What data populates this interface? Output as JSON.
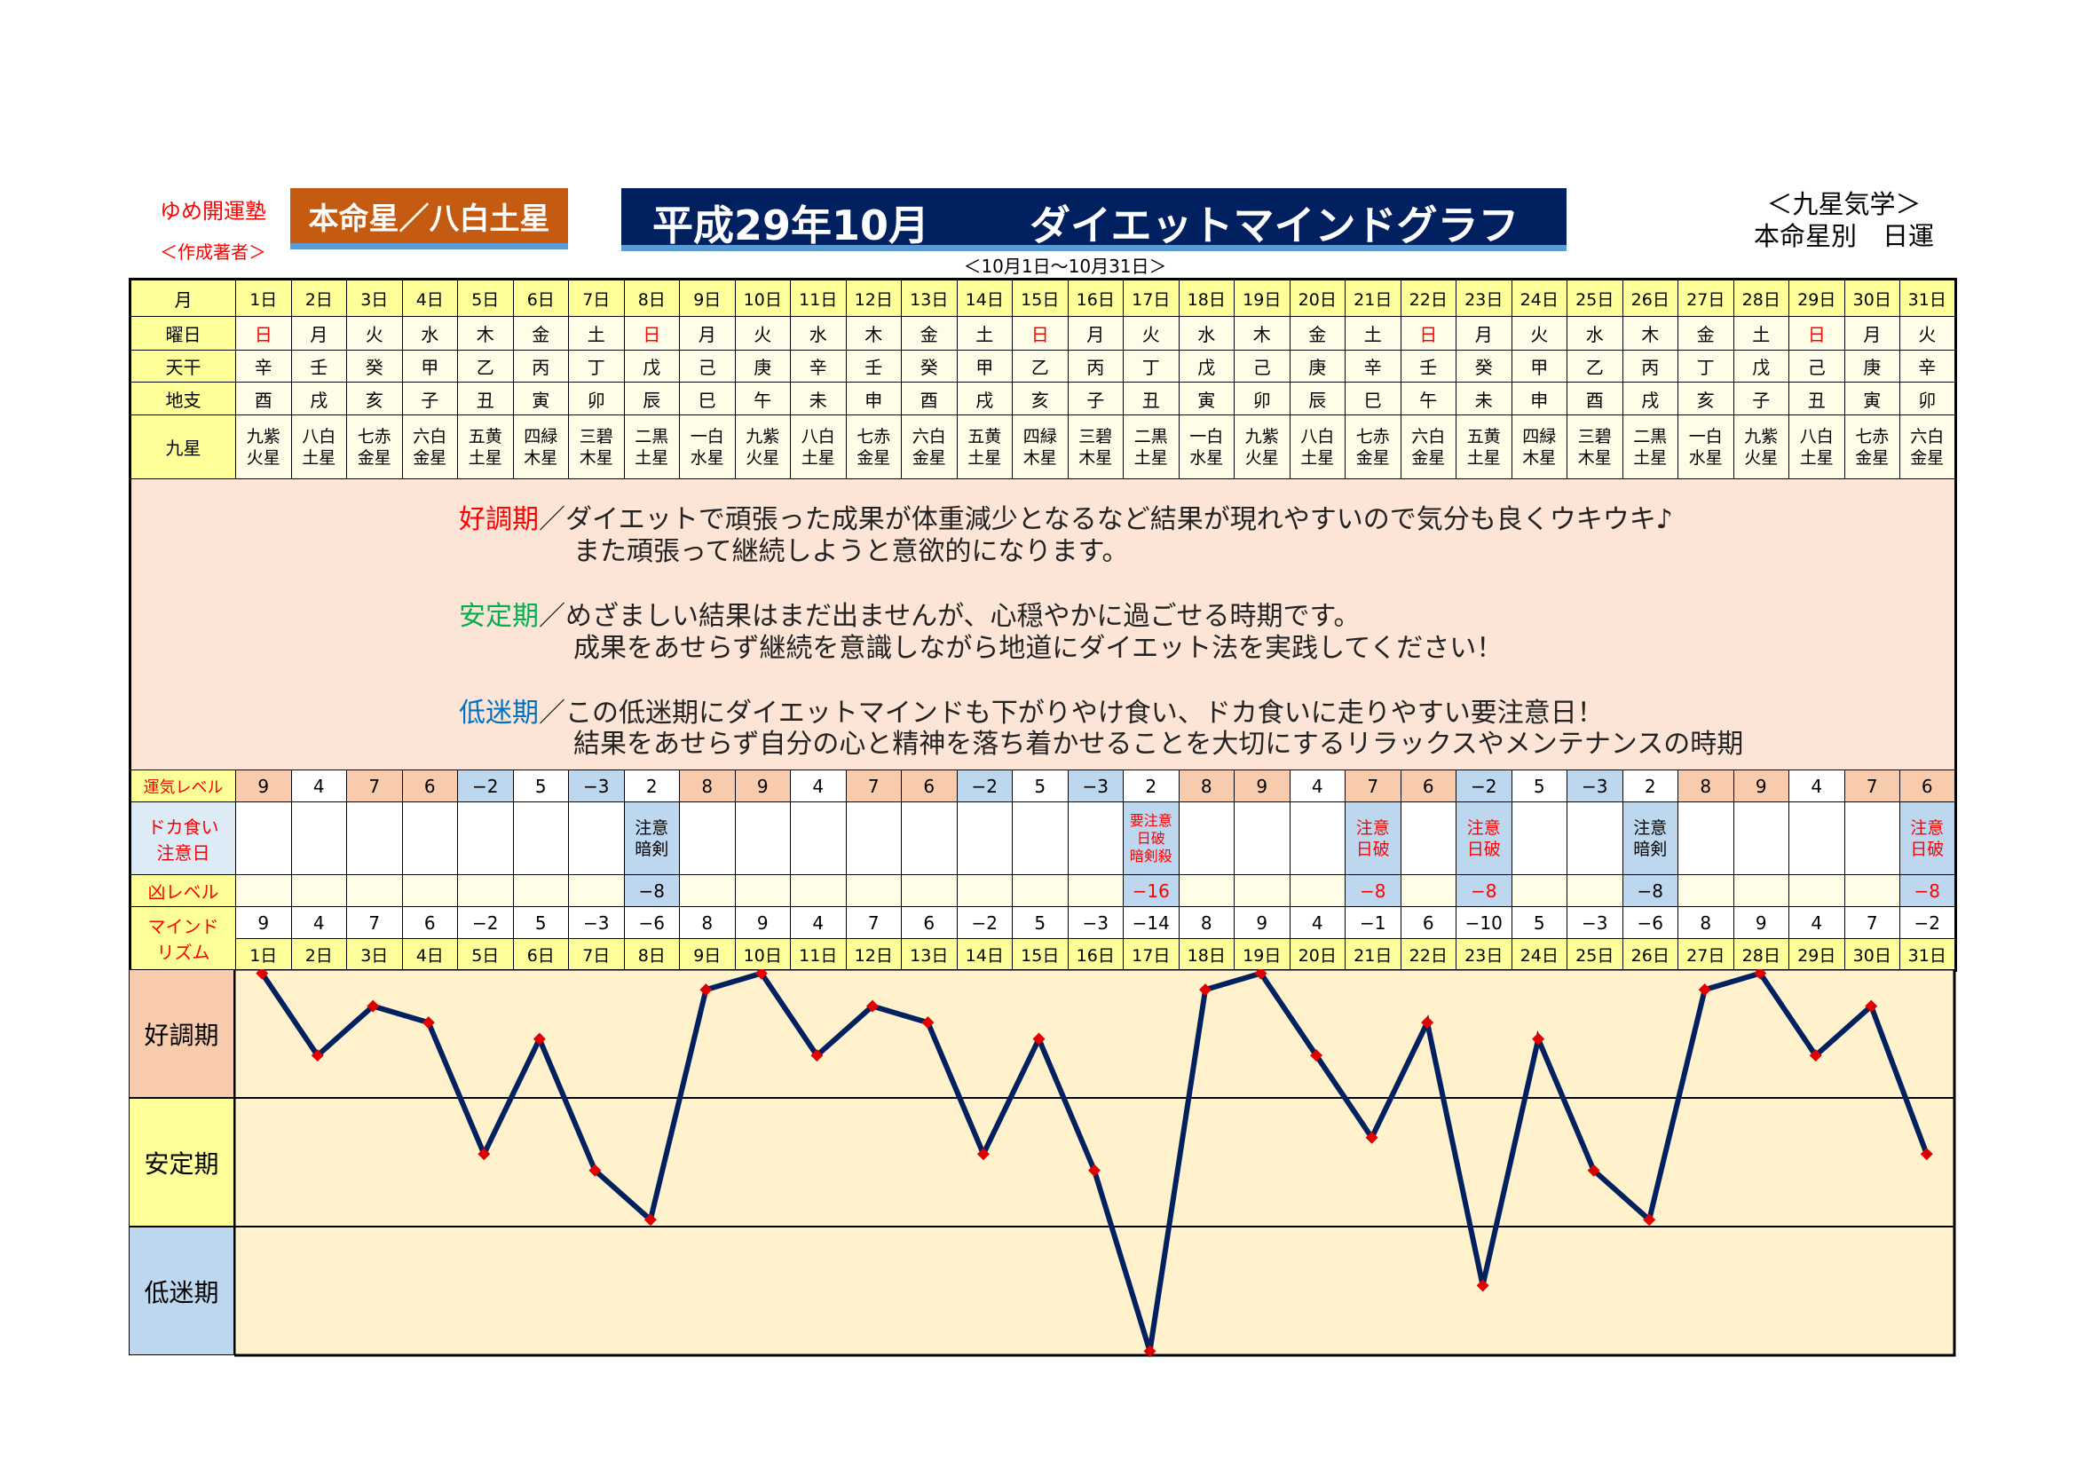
{
  "header": {
    "org": "ゆめ開運塾",
    "author": "＜作成著者＞",
    "honmeisei": "本命星／八白土星",
    "title_date": "平成29年10月",
    "title_main": "ダイエットマインドグラフ",
    "range": "＜10月1日～10月31日＞",
    "right_line1": "＜九星気学＞",
    "right_line2": "本命星別　日運"
  },
  "row_labels": {
    "month": "月",
    "weekday": "曜日",
    "kan": "天干",
    "shi": "地支",
    "star": "九星",
    "fortune": "運気レベル",
    "caution": "ドカ食い\n注意日",
    "kyou": "凶レベル",
    "mind": "マインド\nリズム"
  },
  "rows": {
    "day": [
      "1日",
      "2日",
      "3日",
      "4日",
      "5日",
      "6日",
      "7日",
      "8日",
      "9日",
      "10日",
      "11日",
      "12日",
      "13日",
      "14日",
      "15日",
      "16日",
      "17日",
      "18日",
      "19日",
      "20日",
      "21日",
      "22日",
      "23日",
      "24日",
      "25日",
      "26日",
      "27日",
      "28日",
      "29日",
      "30日",
      "31日"
    ],
    "weekday": [
      "日",
      "月",
      "火",
      "水",
      "木",
      "金",
      "土",
      "日",
      "月",
      "火",
      "水",
      "木",
      "金",
      "土",
      "日",
      "月",
      "火",
      "水",
      "木",
      "金",
      "土",
      "日",
      "月",
      "火",
      "水",
      "木",
      "金",
      "土",
      "日",
      "月",
      "火"
    ],
    "kan": [
      "辛",
      "壬",
      "癸",
      "甲",
      "乙",
      "丙",
      "丁",
      "戊",
      "己",
      "庚",
      "辛",
      "壬",
      "癸",
      "甲",
      "乙",
      "丙",
      "丁",
      "戊",
      "己",
      "庚",
      "辛",
      "壬",
      "癸",
      "甲",
      "乙",
      "丙",
      "丁",
      "戊",
      "己",
      "庚",
      "辛"
    ],
    "shi": [
      "酉",
      "戌",
      "亥",
      "子",
      "丑",
      "寅",
      "卯",
      "辰",
      "巳",
      "午",
      "未",
      "申",
      "酉",
      "戌",
      "亥",
      "子",
      "丑",
      "寅",
      "卯",
      "辰",
      "巳",
      "午",
      "未",
      "申",
      "酉",
      "戌",
      "亥",
      "子",
      "丑",
      "寅",
      "卯"
    ],
    "star": [
      "九紫\n火星",
      "八白\n土星",
      "七赤\n金星",
      "六白\n金星",
      "五黄\n土星",
      "四緑\n木星",
      "三碧\n木星",
      "二黒\n土星",
      "一白\n水星",
      "九紫\n火星",
      "八白\n土星",
      "七赤\n金星",
      "六白\n金星",
      "五黄\n土星",
      "四緑\n木星",
      "三碧\n木星",
      "二黒\n土星",
      "一白\n水星",
      "九紫\n火星",
      "八白\n土星",
      "七赤\n金星",
      "六白\n金星",
      "五黄\n土星",
      "四緑\n木星",
      "三碧\n木星",
      "二黒\n土星",
      "一白\n水星",
      "九紫\n火星",
      "八白\n土星",
      "七赤\n金星",
      "六白\n金星"
    ],
    "fortune": [
      "9",
      "4",
      "7",
      "6",
      "−2",
      "5",
      "−3",
      "2",
      "8",
      "9",
      "4",
      "7",
      "6",
      "−2",
      "5",
      "−3",
      "2",
      "8",
      "9",
      "4",
      "7",
      "6",
      "−2",
      "5",
      "−3",
      "2",
      "8",
      "9",
      "4",
      "7",
      "6"
    ],
    "caution": [
      "",
      "",
      "",
      "",
      "",
      "",
      "",
      "注意\n暗剣",
      "",
      "",
      "",
      "",
      "",
      "",
      "",
      "",
      "要注意\n日破\n暗剣殺",
      "",
      "",
      "",
      "注意\n日破",
      "",
      "注意\n日破",
      "",
      "",
      "注意\n暗剣",
      "",
      "",
      "",
      "",
      "注意\n日破"
    ],
    "caution_red": [
      false,
      false,
      false,
      false,
      false,
      false,
      false,
      false,
      false,
      false,
      false,
      false,
      false,
      false,
      false,
      false,
      true,
      false,
      false,
      false,
      true,
      false,
      true,
      false,
      false,
      false,
      false,
      false,
      false,
      false,
      true
    ],
    "kyou": [
      "",
      "",
      "",
      "",
      "",
      "",
      "",
      "−8",
      "",
      "",
      "",
      "",
      "",
      "",
      "",
      "",
      "−16",
      "",
      "",
      "",
      "−8",
      "",
      "−8",
      "",
      "",
      "−8",
      "",
      "",
      "",
      "",
      "−8"
    ],
    "mind": [
      "9",
      "4",
      "7",
      "6",
      "−2",
      "5",
      "−3",
      "−6",
      "8",
      "9",
      "4",
      "7",
      "6",
      "−2",
      "5",
      "−3",
      "−14",
      "8",
      "9",
      "4",
      "−1",
      "6",
      "−10",
      "5",
      "−3",
      "−6",
      "8",
      "9",
      "4",
      "7",
      "−2"
    ]
  },
  "descriptions": [
    {
      "label": "好調期",
      "label_color": "#ff0000",
      "line1": "／ダイエットで頑張った成果が体重減少となるなど結果が現れやすいので気分も良くウキウキ♪",
      "line2": "また頑張って継続しようと意欲的になります。"
    },
    {
      "label": "安定期",
      "label_color": "#00b050",
      "line1": "／めざましい結果はまだ出ませんが、心穏やかに過ごせる時期です。",
      "line2": "成果をあせらず継続を意識しながら地道にダイエット法を実践してください！"
    },
    {
      "label": "低迷期",
      "label_color": "#0070c0",
      "line1": "／この低迷期にダイエットマインドも下がりやけ食い、ドカ食いに走りやすい要注意日！",
      "line2": "結果をあせらず自分の心と精神を落ち着かせることを大切にするリラックスやメンテナンスの時期"
    }
  ],
  "chart_data": {
    "type": "line",
    "x": [
      "1日",
      "2日",
      "3日",
      "4日",
      "5日",
      "6日",
      "7日",
      "8日",
      "9日",
      "10日",
      "11日",
      "12日",
      "13日",
      "14日",
      "15日",
      "16日",
      "17日",
      "18日",
      "19日",
      "20日",
      "21日",
      "22日",
      "23日",
      "24日",
      "25日",
      "26日",
      "27日",
      "28日",
      "29日",
      "30日",
      "31日"
    ],
    "values": [
      9,
      4,
      7,
      6,
      -2,
      5,
      -3,
      -6,
      8,
      9,
      4,
      7,
      6,
      -2,
      5,
      -3,
      -14,
      8,
      9,
      4,
      -1,
      6,
      -10,
      5,
      -3,
      -6,
      8,
      9,
      4,
      7,
      -2
    ],
    "bands": [
      "好調期",
      "安定期",
      "低迷期"
    ],
    "band_colors": [
      "#f8cbad",
      "#ffff99",
      "#bdd7ee"
    ],
    "ylim": [
      -14.25,
      9.25
    ],
    "line_color": "#002060",
    "marker_color": "#e00000",
    "marker": "diamond",
    "background": "#fff2cc"
  },
  "colors": {
    "positive_high": "#f8cbad",
    "neutral": "#ffffff",
    "negative": "#bdd7ee",
    "label_bg": "#ffff99"
  }
}
